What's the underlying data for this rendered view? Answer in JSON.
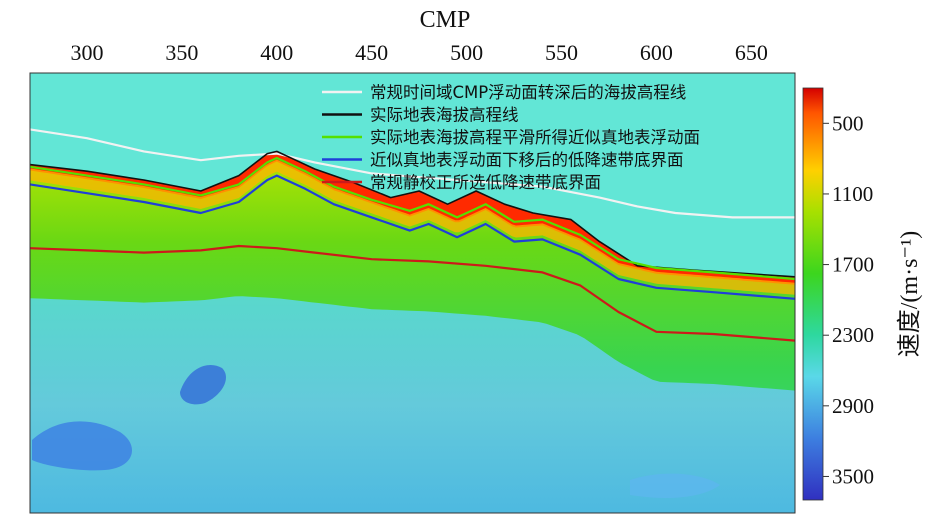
{
  "chart_data": {
    "type": "heatmap",
    "title": "",
    "xlabel": "CMP",
    "x_ticks": [
      300,
      350,
      400,
      450,
      500,
      550,
      600,
      650
    ],
    "xlim": [
      270,
      673
    ],
    "colorbar": {
      "label": "速度/(m·s⁻¹)",
      "ticks": [
        500,
        1100,
        1700,
        2300,
        2900,
        3500
      ],
      "range": [
        200,
        3700
      ],
      "colors": [
        "#d40000",
        "#ff5500",
        "#ffd000",
        "#a8e000",
        "#3cd61e",
        "#2ed8a0",
        "#5ad8e8",
        "#3d7fe0",
        "#3030c0"
      ]
    },
    "series": [
      {
        "name": "常规时间域CMP浮动面转深后的海拔高程线",
        "color": "#f2f2f2",
        "x": [
          270,
          300,
          330,
          360,
          380,
          400,
          420,
          450,
          480,
          510,
          540,
          570,
          590,
          610,
          640,
          673
        ],
        "y": [
          0.22,
          0.26,
          0.32,
          0.36,
          0.34,
          0.33,
          0.37,
          0.42,
          0.44,
          0.46,
          0.48,
          0.53,
          0.57,
          0.6,
          0.62,
          0.62
        ]
      },
      {
        "name": "实际地表海拔高程线",
        "color": "#111111",
        "x": [
          270,
          300,
          330,
          360,
          380,
          395,
          400,
          410,
          420,
          440,
          460,
          475,
          490,
          505,
          520,
          535,
          555,
          570,
          590,
          620,
          673
        ],
        "y": [
          0.38,
          0.41,
          0.45,
          0.5,
          0.43,
          0.33,
          0.32,
          0.36,
          0.4,
          0.46,
          0.53,
          0.5,
          0.56,
          0.5,
          0.56,
          0.6,
          0.63,
          0.73,
          0.84,
          0.86,
          0.89
        ]
      },
      {
        "name": "实际地表海拔高程平滑所得近似真地表浮动面",
        "color": "#55e000",
        "x": [
          270,
          300,
          330,
          360,
          380,
          395,
          400,
          415,
          430,
          450,
          470,
          480,
          495,
          510,
          525,
          540,
          560,
          580,
          600,
          630,
          673
        ],
        "y": [
          0.39,
          0.43,
          0.47,
          0.52,
          0.47,
          0.37,
          0.35,
          0.41,
          0.48,
          0.54,
          0.59,
          0.56,
          0.62,
          0.56,
          0.64,
          0.63,
          0.7,
          0.81,
          0.85,
          0.87,
          0.9
        ]
      },
      {
        "name": "近似真地表浮动面下移后的低降速带底界面",
        "color": "#1f3fd8",
        "x": [
          270,
          300,
          330,
          360,
          380,
          395,
          400,
          415,
          430,
          450,
          470,
          480,
          495,
          510,
          525,
          540,
          560,
          580,
          600,
          630,
          673
        ],
        "y": [
          0.47,
          0.51,
          0.55,
          0.6,
          0.55,
          0.45,
          0.43,
          0.49,
          0.56,
          0.62,
          0.68,
          0.65,
          0.71,
          0.65,
          0.73,
          0.72,
          0.79,
          0.9,
          0.94,
          0.96,
          0.99
        ]
      },
      {
        "name": "常规静校正所选低降速带底界面",
        "color": "#cc1a1a",
        "x": [
          270,
          300,
          330,
          360,
          380,
          400,
          420,
          450,
          480,
          510,
          540,
          560,
          580,
          600,
          630,
          673
        ],
        "y": [
          0.76,
          0.77,
          0.78,
          0.77,
          0.75,
          0.76,
          0.78,
          0.81,
          0.82,
          0.84,
          0.87,
          0.93,
          1.05,
          1.14,
          1.15,
          1.18
        ]
      }
    ]
  }
}
